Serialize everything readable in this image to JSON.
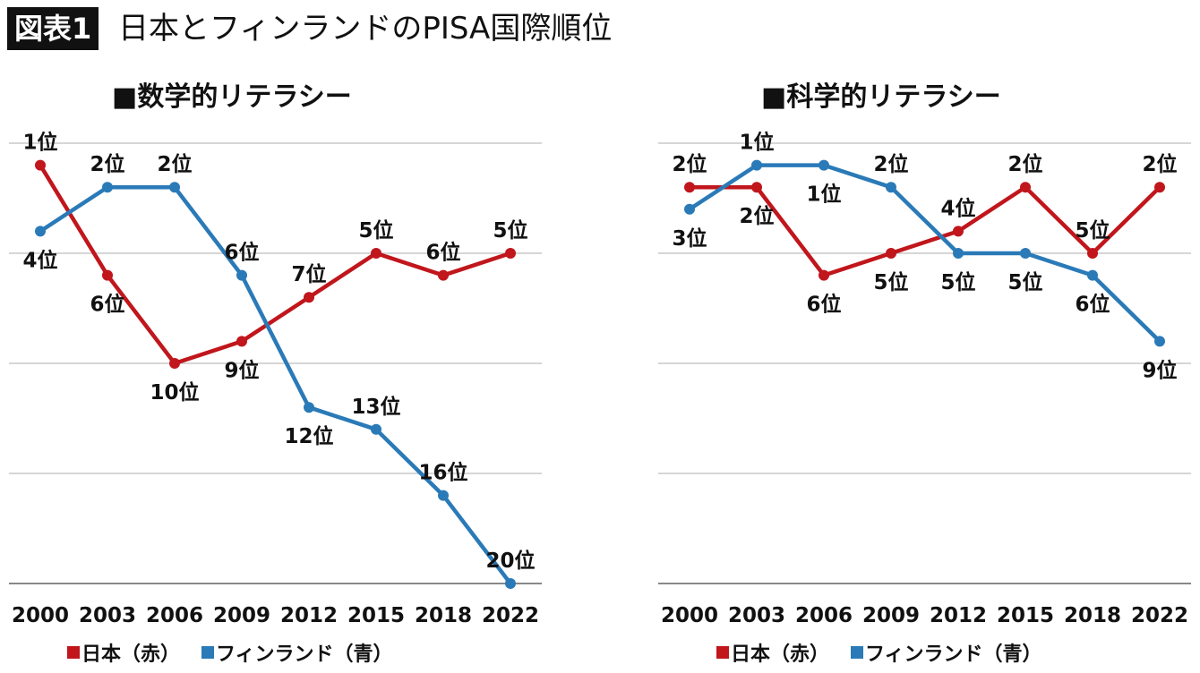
{
  "header": {
    "badge": "図表1",
    "title": "日本とフィンランドのPISA国際順位"
  },
  "colors": {
    "japan": "#c0161c",
    "finland": "#2a7ab8",
    "grid": "#c8c8c8"
  },
  "chart_data": [
    {
      "type": "line",
      "title": "■数学的リテラシー",
      "categories": [
        "2000",
        "2003",
        "2006",
        "2009",
        "2012",
        "2015",
        "2018",
        "2022"
      ],
      "ylim": [
        20,
        0
      ],
      "y_reversed": true,
      "grid": true,
      "legend_position": "bottom",
      "legend": [
        "■日本（赤）",
        "■フィンランド（青）"
      ],
      "series": [
        {
          "name": "日本（赤）",
          "values": [
            1,
            6,
            10,
            9,
            7,
            5,
            6,
            5
          ],
          "labels": [
            "1位",
            "6位",
            "10位",
            "9位",
            "7位",
            "5位",
            "6位",
            "5位"
          ]
        },
        {
          "name": "フィンランド（青）",
          "values": [
            4,
            2,
            2,
            6,
            12,
            13,
            16,
            20
          ],
          "labels": [
            "4位",
            "2位",
            "2位",
            "6位",
            "12位",
            "13位",
            "16位",
            "20位"
          ]
        }
      ]
    },
    {
      "type": "line",
      "title": "■科学的リテラシー",
      "categories": [
        "2000",
        "2003",
        "2006",
        "2009",
        "2012",
        "2015",
        "2018",
        "2022"
      ],
      "ylim": [
        20,
        0
      ],
      "y_reversed": true,
      "grid": true,
      "legend_position": "bottom",
      "legend": [
        "■日本（赤）",
        "■フィンランド（青）"
      ],
      "series": [
        {
          "name": "日本（赤）",
          "values": [
            2,
            2,
            6,
            5,
            4,
            2,
            5,
            2
          ],
          "labels": [
            "2位",
            "2位",
            "6位",
            "5位",
            "4位",
            "2位",
            "5位",
            "2位"
          ]
        },
        {
          "name": "フィンランド（青）",
          "values": [
            3,
            1,
            1,
            2,
            5,
            5,
            6,
            9
          ],
          "labels": [
            "3位",
            "1位",
            "1位",
            "2位",
            "5位",
            "5位",
            "6位",
            "9位"
          ]
        }
      ]
    }
  ]
}
